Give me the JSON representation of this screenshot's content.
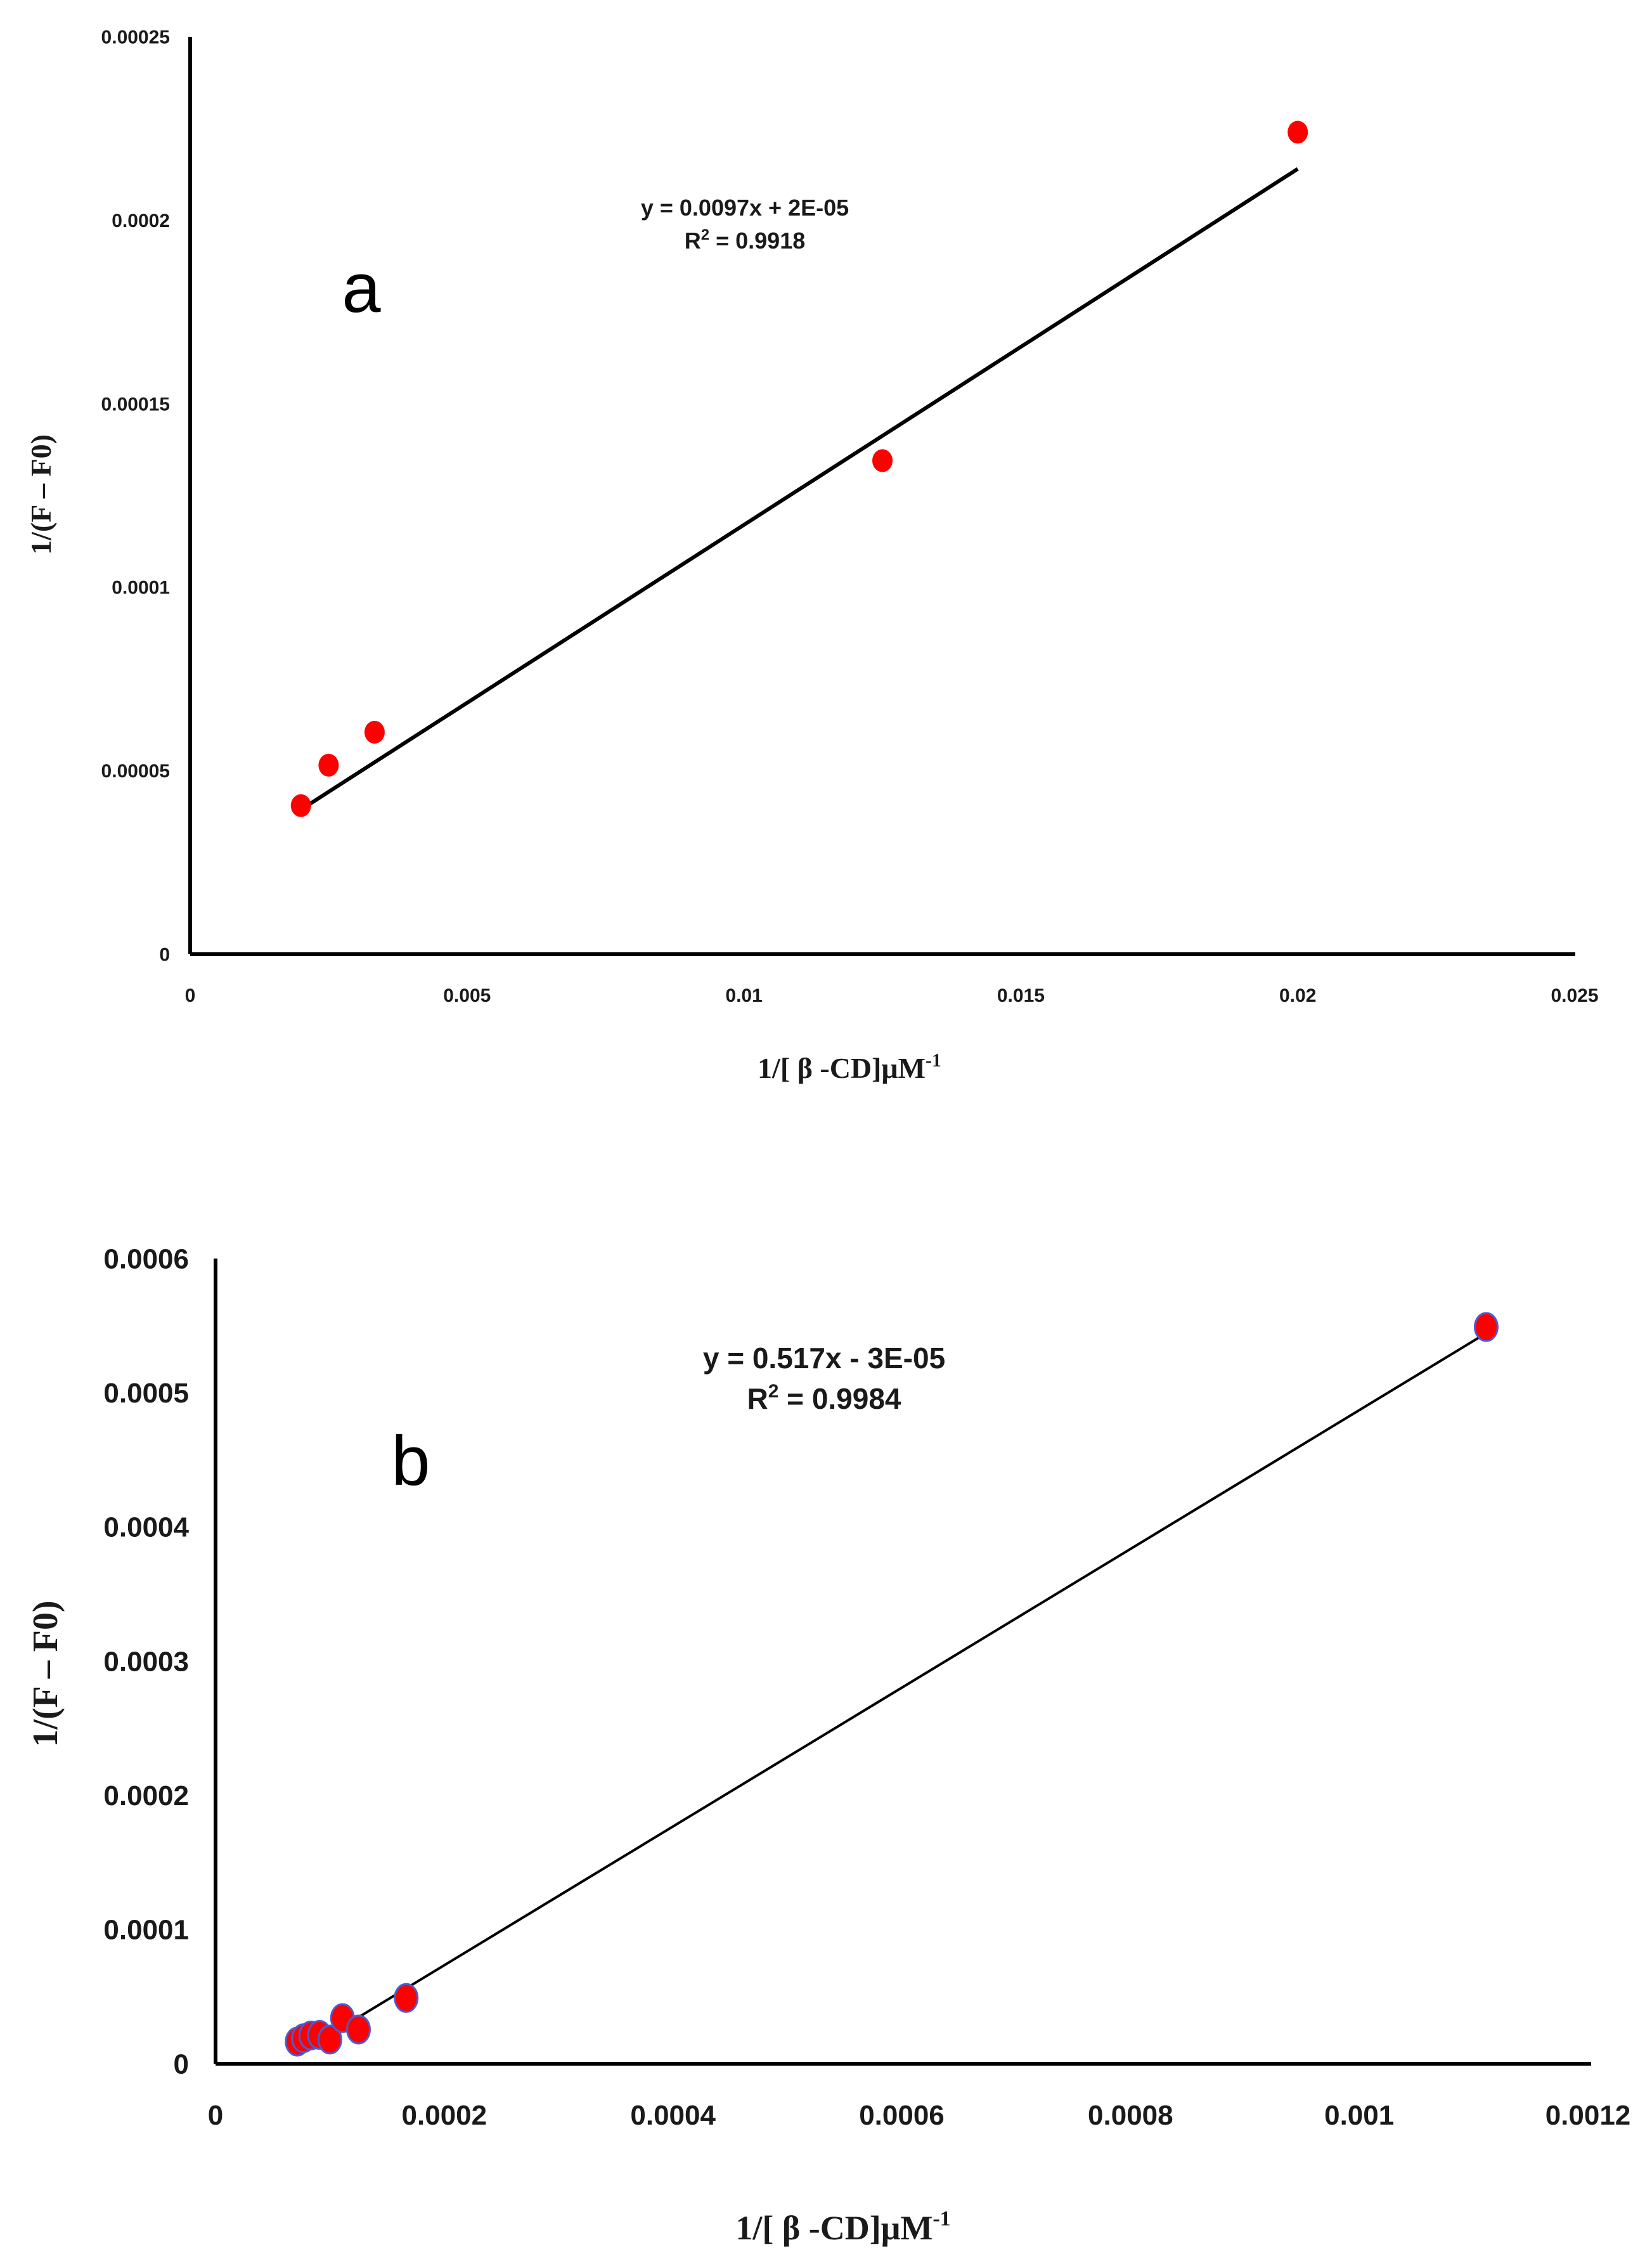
{
  "colors": {
    "point": "#ff0000",
    "point_edge_b": "#4a5bd4",
    "axis": "#000000",
    "line": "#000000",
    "text": "#1a1a1a"
  },
  "chart_data": [
    {
      "type": "scatter",
      "panel_label": "a",
      "xlabel_main": "1/[ β -CD]μM",
      "xlabel_sup": "-1",
      "ylabel": "1/(F – F0)",
      "xlim": [
        0,
        0.025
      ],
      "ylim": [
        0,
        0.00025
      ],
      "xticks": [
        0,
        0.005,
        0.01,
        0.015,
        0.02,
        0.025
      ],
      "xtick_labels": [
        "0",
        "0.005",
        "0.01",
        "0.015",
        "0.02",
        "0.025"
      ],
      "yticks": [
        0,
        5e-05,
        0.0001,
        0.00015,
        0.0002,
        0.00025
      ],
      "ytick_labels": [
        "0",
        "0.00005",
        "0.0001",
        "0.00015",
        "0.0002",
        "0.00025"
      ],
      "series": [
        {
          "name": "data",
          "x": [
            0.002,
            0.0025,
            0.00333,
            0.0125,
            0.02
          ],
          "y": [
            4.05e-05,
            5.15e-05,
            6.05e-05,
            0.0001345,
            0.000224
          ]
        }
      ],
      "trendline": {
        "slope": 0.0097,
        "intercept": 2e-05,
        "x_range": [
          0.002,
          0.02
        ]
      },
      "equation": "y = 0.0097x + 2E-05",
      "r2_label": "R",
      "r2_sup": "2",
      "r2_value": " = 0.9918"
    },
    {
      "type": "scatter",
      "panel_label": "b",
      "xlabel_main": "1/[ β -CD]μM",
      "xlabel_sup": "-1",
      "ylabel": "1/(F – F0)",
      "xlim": [
        0,
        0.0012
      ],
      "ylim": [
        0,
        0.0006
      ],
      "xticks": [
        0,
        0.0002,
        0.0004,
        0.0006,
        0.0008,
        0.001,
        0.0012
      ],
      "xtick_labels": [
        "0",
        "0.0002",
        "0.0004",
        "0.0006",
        "0.0008",
        "0.001",
        "0.0012"
      ],
      "yticks": [
        0,
        0.0001,
        0.0002,
        0.0003,
        0.0004,
        0.0005,
        0.0006
      ],
      "ytick_labels": [
        "0",
        "0.0001",
        "0.0002",
        "0.0003",
        "0.0004",
        "0.0005",
        "0.0006"
      ],
      "series": [
        {
          "name": "data",
          "x": [
            7.14e-05,
            7.69e-05,
            8.33e-05,
            9.09e-05,
            0.0001,
            0.000111,
            0.000125,
            0.0001667,
            0.001111
          ],
          "y": [
            1.65e-05,
            1.9e-05,
            2.1e-05,
            2.15e-05,
            1.8e-05,
            3.4e-05,
            2.55e-05,
            4.9e-05,
            0.000549
          ]
        }
      ],
      "trendline": {
        "slope": 0.517,
        "intercept": -3e-05,
        "x_range": [
          7.14e-05,
          0.001111
        ]
      },
      "equation": "y = 0.517x - 3E-05",
      "r2_label": "R",
      "r2_sup": "2",
      "r2_value": " = 0.9984"
    }
  ]
}
